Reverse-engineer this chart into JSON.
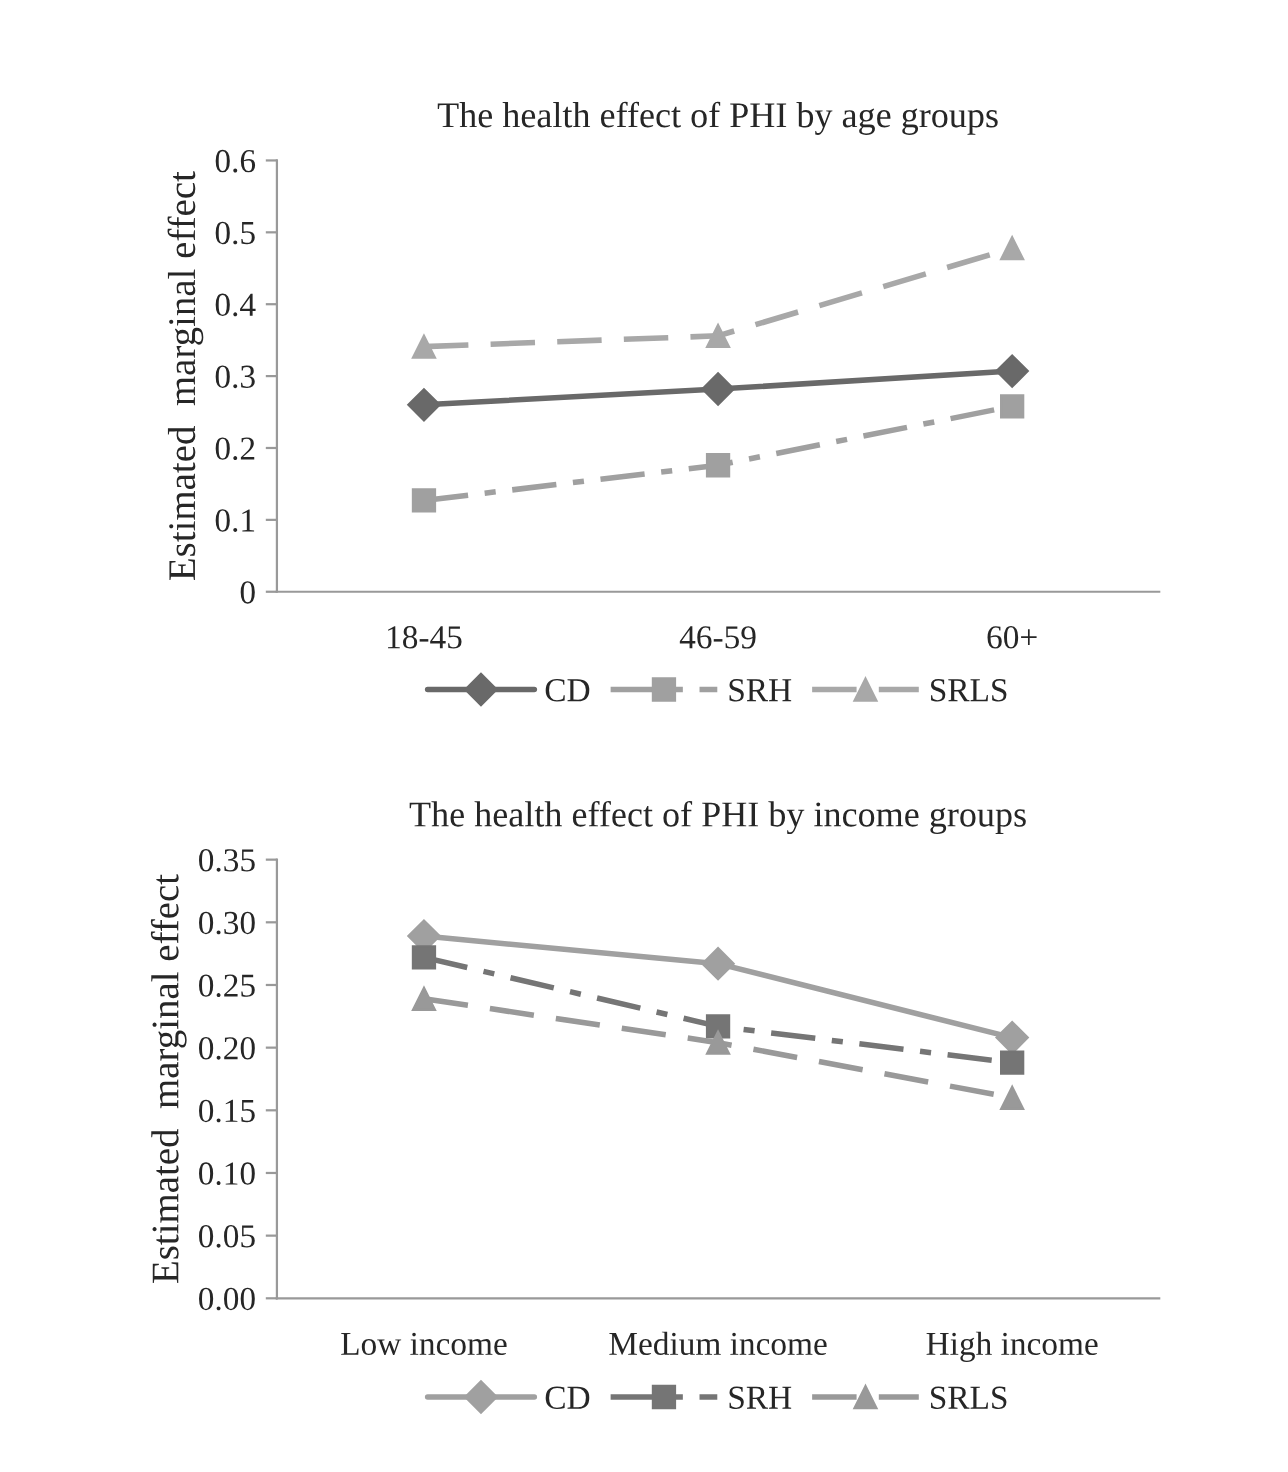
{
  "chart_data": [
    {
      "type": "line",
      "title": "The health effect of PHI by age groups",
      "ylabel": "Estimated  marginal effect",
      "categories": [
        "18-45",
        "46-59",
        "60+"
      ],
      "series": [
        {
          "name": "CD",
          "color": "#696969",
          "values": [
            0.26,
            0.282,
            0.307
          ],
          "marker": "diamond",
          "line_style": "solid"
        },
        {
          "name": "SRH",
          "color": "#a0a0a0",
          "values": [
            0.127,
            0.176,
            0.258
          ],
          "marker": "square",
          "line_style": "dashdot"
        },
        {
          "name": "SRLS",
          "color": "#a8a8a8",
          "values": [
            0.341,
            0.356,
            0.478
          ],
          "marker": "triangle",
          "line_style": "dashed"
        }
      ],
      "ylim": [
        0,
        0.6
      ],
      "yticks": [
        0,
        0.1,
        0.2,
        0.3,
        0.4,
        0.5,
        0.6
      ],
      "grid": false,
      "legend": "bottom"
    },
    {
      "type": "line",
      "title": "The health effect of PHI by income groups",
      "ylabel": "Estimated  marginal effect",
      "categories": [
        "Low income",
        "Medium income",
        "High income"
      ],
      "series": [
        {
          "name": "CD",
          "color": "#a0a0a0",
          "values": [
            0.289,
            0.267,
            0.208
          ],
          "marker": "diamond",
          "line_style": "solid"
        },
        {
          "name": "SRH",
          "color": "#757575",
          "values": [
            0.272,
            0.217,
            0.188
          ],
          "marker": "square",
          "line_style": "dashdot"
        },
        {
          "name": "SRLS",
          "color": "#999999",
          "values": [
            0.239,
            0.204,
            0.16
          ],
          "marker": "triangle",
          "line_style": "dashed"
        }
      ],
      "ylim": [
        0,
        0.35
      ],
      "yticks": [
        {
          "value": 0,
          "label": "0.00"
        },
        {
          "value": 0.05,
          "label": "0.05"
        },
        {
          "value": 0.1,
          "label": "0.10"
        },
        {
          "value": 0.15,
          "label": "0.15"
        },
        {
          "value": 0.2,
          "label": "0.20"
        },
        {
          "value": 0.25,
          "label": "0.25"
        },
        {
          "value": 0.3,
          "label": "0.30"
        },
        {
          "value": 0.35,
          "label": "0.35"
        }
      ],
      "grid": false,
      "legend": "bottom"
    }
  ]
}
